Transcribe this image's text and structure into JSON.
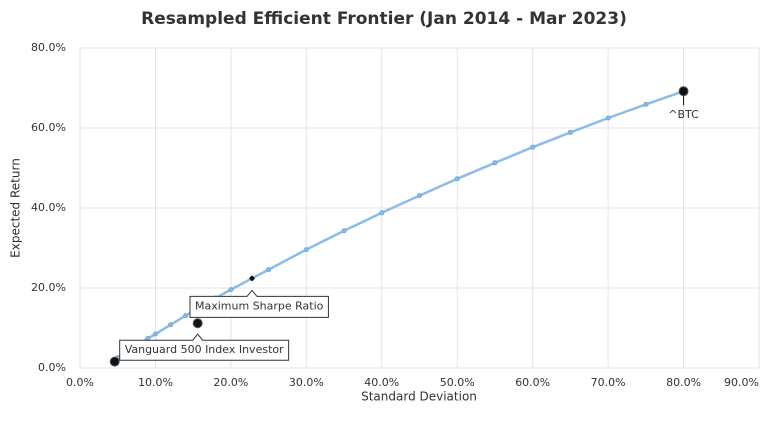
{
  "chart_data": {
    "type": "line",
    "title": "Resampled Efficient Frontier (Jan 2014 - Mar 2023)",
    "x_label": "Standard Deviation",
    "y_label": "Expected Return",
    "frontier": {
      "color": "#8bbde8",
      "x": [
        4.6,
        5,
        6,
        7,
        8,
        9,
        10,
        12,
        14,
        16,
        18,
        20,
        22.8,
        25,
        30,
        35,
        40,
        45,
        50,
        55,
        60,
        65,
        70,
        75,
        80
      ],
      "values": [
        1.6,
        2.6,
        3.9,
        5.1,
        6.3,
        7.4,
        8.5,
        10.8,
        13.1,
        15.3,
        17.5,
        19.6,
        22.4,
        24.6,
        29.6,
        34.3,
        38.8,
        43.1,
        47.3,
        51.3,
        55.2,
        58.9,
        62.5,
        65.9,
        69.2
      ]
    },
    "points": [
      {
        "x": 4.6,
        "y": 1.6,
        "label": null
      },
      {
        "x": 15.6,
        "y": 11.2,
        "label": "Vanguard 500 Index Investor"
      },
      {
        "x": 80,
        "y": 69.2,
        "label": "^BTC"
      }
    ],
    "sharpe": {
      "x": 22.8,
      "y": 22.4,
      "label": "Maximum Sharpe Ratio"
    },
    "xlim": [
      0,
      90
    ],
    "xticks": [
      {
        "value": 0,
        "label": "0.0%"
      },
      {
        "value": 10,
        "label": "10.0%"
      },
      {
        "value": 20,
        "label": "20.0%"
      },
      {
        "value": 30,
        "label": "30.0%"
      },
      {
        "value": 40,
        "label": "40.0%"
      },
      {
        "value": 50,
        "label": "50.0%"
      },
      {
        "value": 60,
        "label": "60.0%"
      },
      {
        "value": 70,
        "label": "70.0%"
      },
      {
        "value": 80,
        "label": "80.0%"
      },
      {
        "value": 90,
        "label": "90.0%"
      }
    ],
    "ylim": [
      0,
      80
    ],
    "yticks": [
      {
        "value": 0,
        "label": "0.0%"
      },
      {
        "value": 20,
        "label": "20.0%"
      },
      {
        "value": 40,
        "label": "40.0%"
      },
      {
        "value": 60,
        "label": "60.0%"
      },
      {
        "value": 80,
        "label": "80.0%"
      }
    ],
    "grid": true
  }
}
